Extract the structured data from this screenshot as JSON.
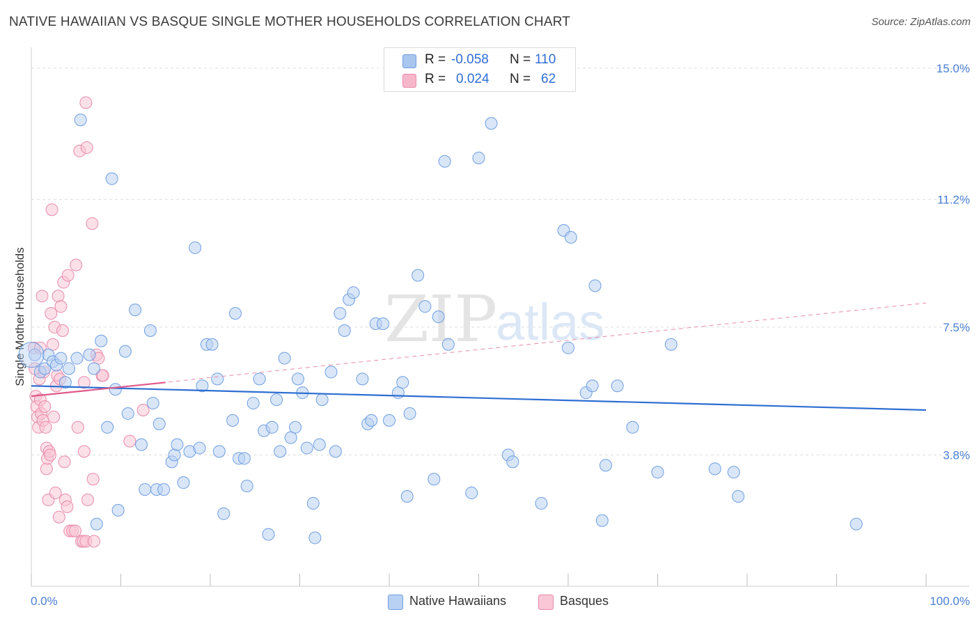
{
  "title": "NATIVE HAWAIIAN VS BASQUE SINGLE MOTHER HOUSEHOLDS CORRELATION CHART",
  "source": "Source: ZipAtlas.com",
  "watermark": {
    "zip": "ZIP",
    "atlas": "atlas"
  },
  "legend": {
    "rows": [
      {
        "r_label": "R =",
        "r_value": "-0.058",
        "n_label": "N =",
        "n_value": "110",
        "color": "#a9c6ef",
        "border": "#6f9ee0"
      },
      {
        "r_label": "R =",
        "r_value": "0.024",
        "n_label": "N =",
        "n_value": "62",
        "color": "#f6b7cb",
        "border": "#e88aab"
      }
    ]
  },
  "bottom_legend": [
    {
      "label": "Native Hawaiians",
      "color": "#b9d1f3",
      "border": "#6f9ee0"
    },
    {
      "label": "Basques",
      "color": "#f9c7d6",
      "border": "#e88aab"
    }
  ],
  "chart_data": {
    "type": "scatter",
    "title": "NATIVE HAWAIIAN VS BASQUE SINGLE MOTHER HOUSEHOLDS CORRELATION CHART",
    "xlabel": "",
    "ylabel": "Single Mother Households",
    "xlim": [
      0,
      100
    ],
    "ylim": [
      0,
      15.4
    ],
    "x_tick_labels": [
      "0.0%",
      "100.0%"
    ],
    "y_ticks": [
      3.8,
      7.5,
      11.2,
      15.0
    ],
    "y_tick_labels": [
      "3.8%",
      "7.5%",
      "11.2%",
      "15.0%"
    ],
    "grid": true,
    "series": [
      {
        "name": "Native Hawaiians",
        "color": "#6f9ee0",
        "fill": "#b9d1f3",
        "trend": {
          "x": [
            0,
            100
          ],
          "y": [
            5.8,
            5.1
          ],
          "color": "#2d6fd2"
        },
        "points": [
          [
            0.4,
            6.7
          ],
          [
            1.0,
            6.2
          ],
          [
            1.5,
            6.3
          ],
          [
            1.9,
            6.7
          ],
          [
            2.4,
            6.5
          ],
          [
            2.8,
            6.4
          ],
          [
            3.3,
            6.6
          ],
          [
            3.8,
            5.9
          ],
          [
            4.2,
            6.3
          ],
          [
            5.1,
            6.6
          ],
          [
            5.5,
            13.5
          ],
          [
            6.5,
            6.7
          ],
          [
            7.0,
            6.3
          ],
          [
            7.3,
            1.8
          ],
          [
            7.8,
            7.1
          ],
          [
            8.5,
            4.6
          ],
          [
            9.0,
            11.8
          ],
          [
            9.4,
            5.7
          ],
          [
            9.7,
            2.2
          ],
          [
            10.5,
            6.8
          ],
          [
            10.8,
            5.0
          ],
          [
            11.6,
            8.0
          ],
          [
            12.3,
            4.1
          ],
          [
            12.7,
            2.8
          ],
          [
            13.3,
            7.4
          ],
          [
            13.6,
            5.3
          ],
          [
            14.0,
            2.8
          ],
          [
            14.3,
            4.7
          ],
          [
            14.8,
            2.8
          ],
          [
            15.7,
            3.6
          ],
          [
            16.0,
            3.8
          ],
          [
            16.3,
            4.1
          ],
          [
            17.0,
            3.0
          ],
          [
            17.7,
            3.9
          ],
          [
            18.3,
            9.8
          ],
          [
            18.8,
            4.0
          ],
          [
            19.1,
            5.8
          ],
          [
            19.6,
            7.0
          ],
          [
            20.2,
            7.0
          ],
          [
            20.8,
            6.0
          ],
          [
            21.0,
            3.9
          ],
          [
            21.5,
            2.1
          ],
          [
            22.5,
            4.8
          ],
          [
            22.8,
            7.9
          ],
          [
            23.2,
            3.7
          ],
          [
            23.8,
            3.7
          ],
          [
            24.1,
            2.9
          ],
          [
            24.8,
            5.3
          ],
          [
            25.5,
            6.0
          ],
          [
            26.0,
            4.5
          ],
          [
            26.5,
            1.5
          ],
          [
            26.9,
            4.6
          ],
          [
            27.4,
            5.4
          ],
          [
            27.8,
            3.9
          ],
          [
            28.3,
            6.6
          ],
          [
            29.0,
            4.3
          ],
          [
            29.5,
            4.6
          ],
          [
            29.8,
            6.0
          ],
          [
            30.3,
            5.6
          ],
          [
            30.8,
            4.0
          ],
          [
            31.5,
            2.4
          ],
          [
            31.7,
            1.4
          ],
          [
            32.2,
            4.1
          ],
          [
            32.5,
            5.4
          ],
          [
            33.5,
            6.2
          ],
          [
            34.0,
            3.9
          ],
          [
            34.5,
            7.9
          ],
          [
            35.0,
            7.4
          ],
          [
            35.5,
            8.3
          ],
          [
            36.0,
            8.5
          ],
          [
            37.0,
            6.0
          ],
          [
            37.6,
            4.7
          ],
          [
            38.0,
            4.8
          ],
          [
            38.5,
            7.6
          ],
          [
            39.3,
            7.6
          ],
          [
            40.0,
            4.8
          ],
          [
            41.0,
            5.6
          ],
          [
            41.5,
            5.9
          ],
          [
            42.0,
            2.6
          ],
          [
            42.3,
            5.0
          ],
          [
            43.2,
            9.0
          ],
          [
            44.0,
            8.1
          ],
          [
            45.0,
            3.1
          ],
          [
            45.5,
            7.8
          ],
          [
            46.2,
            12.3
          ],
          [
            46.6,
            7.0
          ],
          [
            49.2,
            2.7
          ],
          [
            50.0,
            12.4
          ],
          [
            51.4,
            13.4
          ],
          [
            53.3,
            3.8
          ],
          [
            53.8,
            3.6
          ],
          [
            57.0,
            2.4
          ],
          [
            59.5,
            10.3
          ],
          [
            60.3,
            10.1
          ],
          [
            60.0,
            6.9
          ],
          [
            62.0,
            5.6
          ],
          [
            62.7,
            5.8
          ],
          [
            63.0,
            8.7
          ],
          [
            63.8,
            1.9
          ],
          [
            64.2,
            3.5
          ],
          [
            65.5,
            5.8
          ],
          [
            67.2,
            4.6
          ],
          [
            70.0,
            3.3
          ],
          [
            71.5,
            7.0
          ],
          [
            76.4,
            3.4
          ],
          [
            78.5,
            3.3
          ],
          [
            79.0,
            2.6
          ],
          [
            92.2,
            1.8
          ]
        ]
      },
      {
        "name": "Basques",
        "color": "#e88aab",
        "fill": "#f9c7d6",
        "trend": {
          "x": [
            0,
            15
          ],
          "y": [
            5.5,
            5.9
          ],
          "color": "#e0588a"
        },
        "trend_extended": {
          "x": [
            0,
            100
          ],
          "y": [
            5.5,
            8.2
          ],
          "dashed": true
        },
        "points": [
          [
            0.3,
            6.9
          ],
          [
            0.4,
            6.3
          ],
          [
            0.5,
            5.5
          ],
          [
            0.6,
            5.2
          ],
          [
            0.7,
            4.9
          ],
          [
            0.8,
            4.6
          ],
          [
            0.9,
            6.0
          ],
          [
            1.0,
            6.9
          ],
          [
            1.0,
            5.4
          ],
          [
            1.1,
            5.0
          ],
          [
            1.2,
            8.4
          ],
          [
            1.3,
            4.8
          ],
          [
            1.4,
            6.2
          ],
          [
            1.5,
            5.2
          ],
          [
            1.6,
            4.6
          ],
          [
            1.7,
            3.4
          ],
          [
            1.7,
            4.0
          ],
          [
            1.8,
            3.7
          ],
          [
            1.9,
            2.5
          ],
          [
            2.0,
            3.9
          ],
          [
            2.1,
            3.8
          ],
          [
            2.2,
            7.9
          ],
          [
            2.3,
            10.9
          ],
          [
            2.4,
            7.0
          ],
          [
            2.5,
            4.9
          ],
          [
            2.6,
            7.5
          ],
          [
            2.7,
            2.7
          ],
          [
            2.8,
            5.8
          ],
          [
            2.9,
            6.1
          ],
          [
            3.0,
            8.4
          ],
          [
            3.1,
            2.0
          ],
          [
            3.2,
            6.0
          ],
          [
            3.3,
            8.1
          ],
          [
            3.5,
            7.4
          ],
          [
            3.6,
            8.8
          ],
          [
            3.7,
            3.6
          ],
          [
            3.8,
            2.5
          ],
          [
            4.0,
            2.3
          ],
          [
            4.1,
            9.0
          ],
          [
            4.3,
            1.6
          ],
          [
            4.6,
            1.6
          ],
          [
            4.9,
            1.6
          ],
          [
            5.0,
            9.3
          ],
          [
            5.2,
            4.6
          ],
          [
            5.4,
            12.6
          ],
          [
            5.6,
            1.3
          ],
          [
            5.8,
            1.3
          ],
          [
            5.9,
            5.9
          ],
          [
            5.9,
            3.9
          ],
          [
            6.1,
            14.0
          ],
          [
            6.1,
            1.3
          ],
          [
            6.2,
            12.7
          ],
          [
            6.3,
            2.5
          ],
          [
            6.8,
            10.5
          ],
          [
            6.9,
            3.1
          ],
          [
            7.0,
            1.3
          ],
          [
            7.3,
            6.7
          ],
          [
            7.5,
            6.6
          ],
          [
            7.9,
            6.1
          ],
          [
            8.0,
            6.1
          ],
          [
            11.0,
            4.2
          ],
          [
            12.5,
            5.1
          ]
        ]
      }
    ]
  }
}
